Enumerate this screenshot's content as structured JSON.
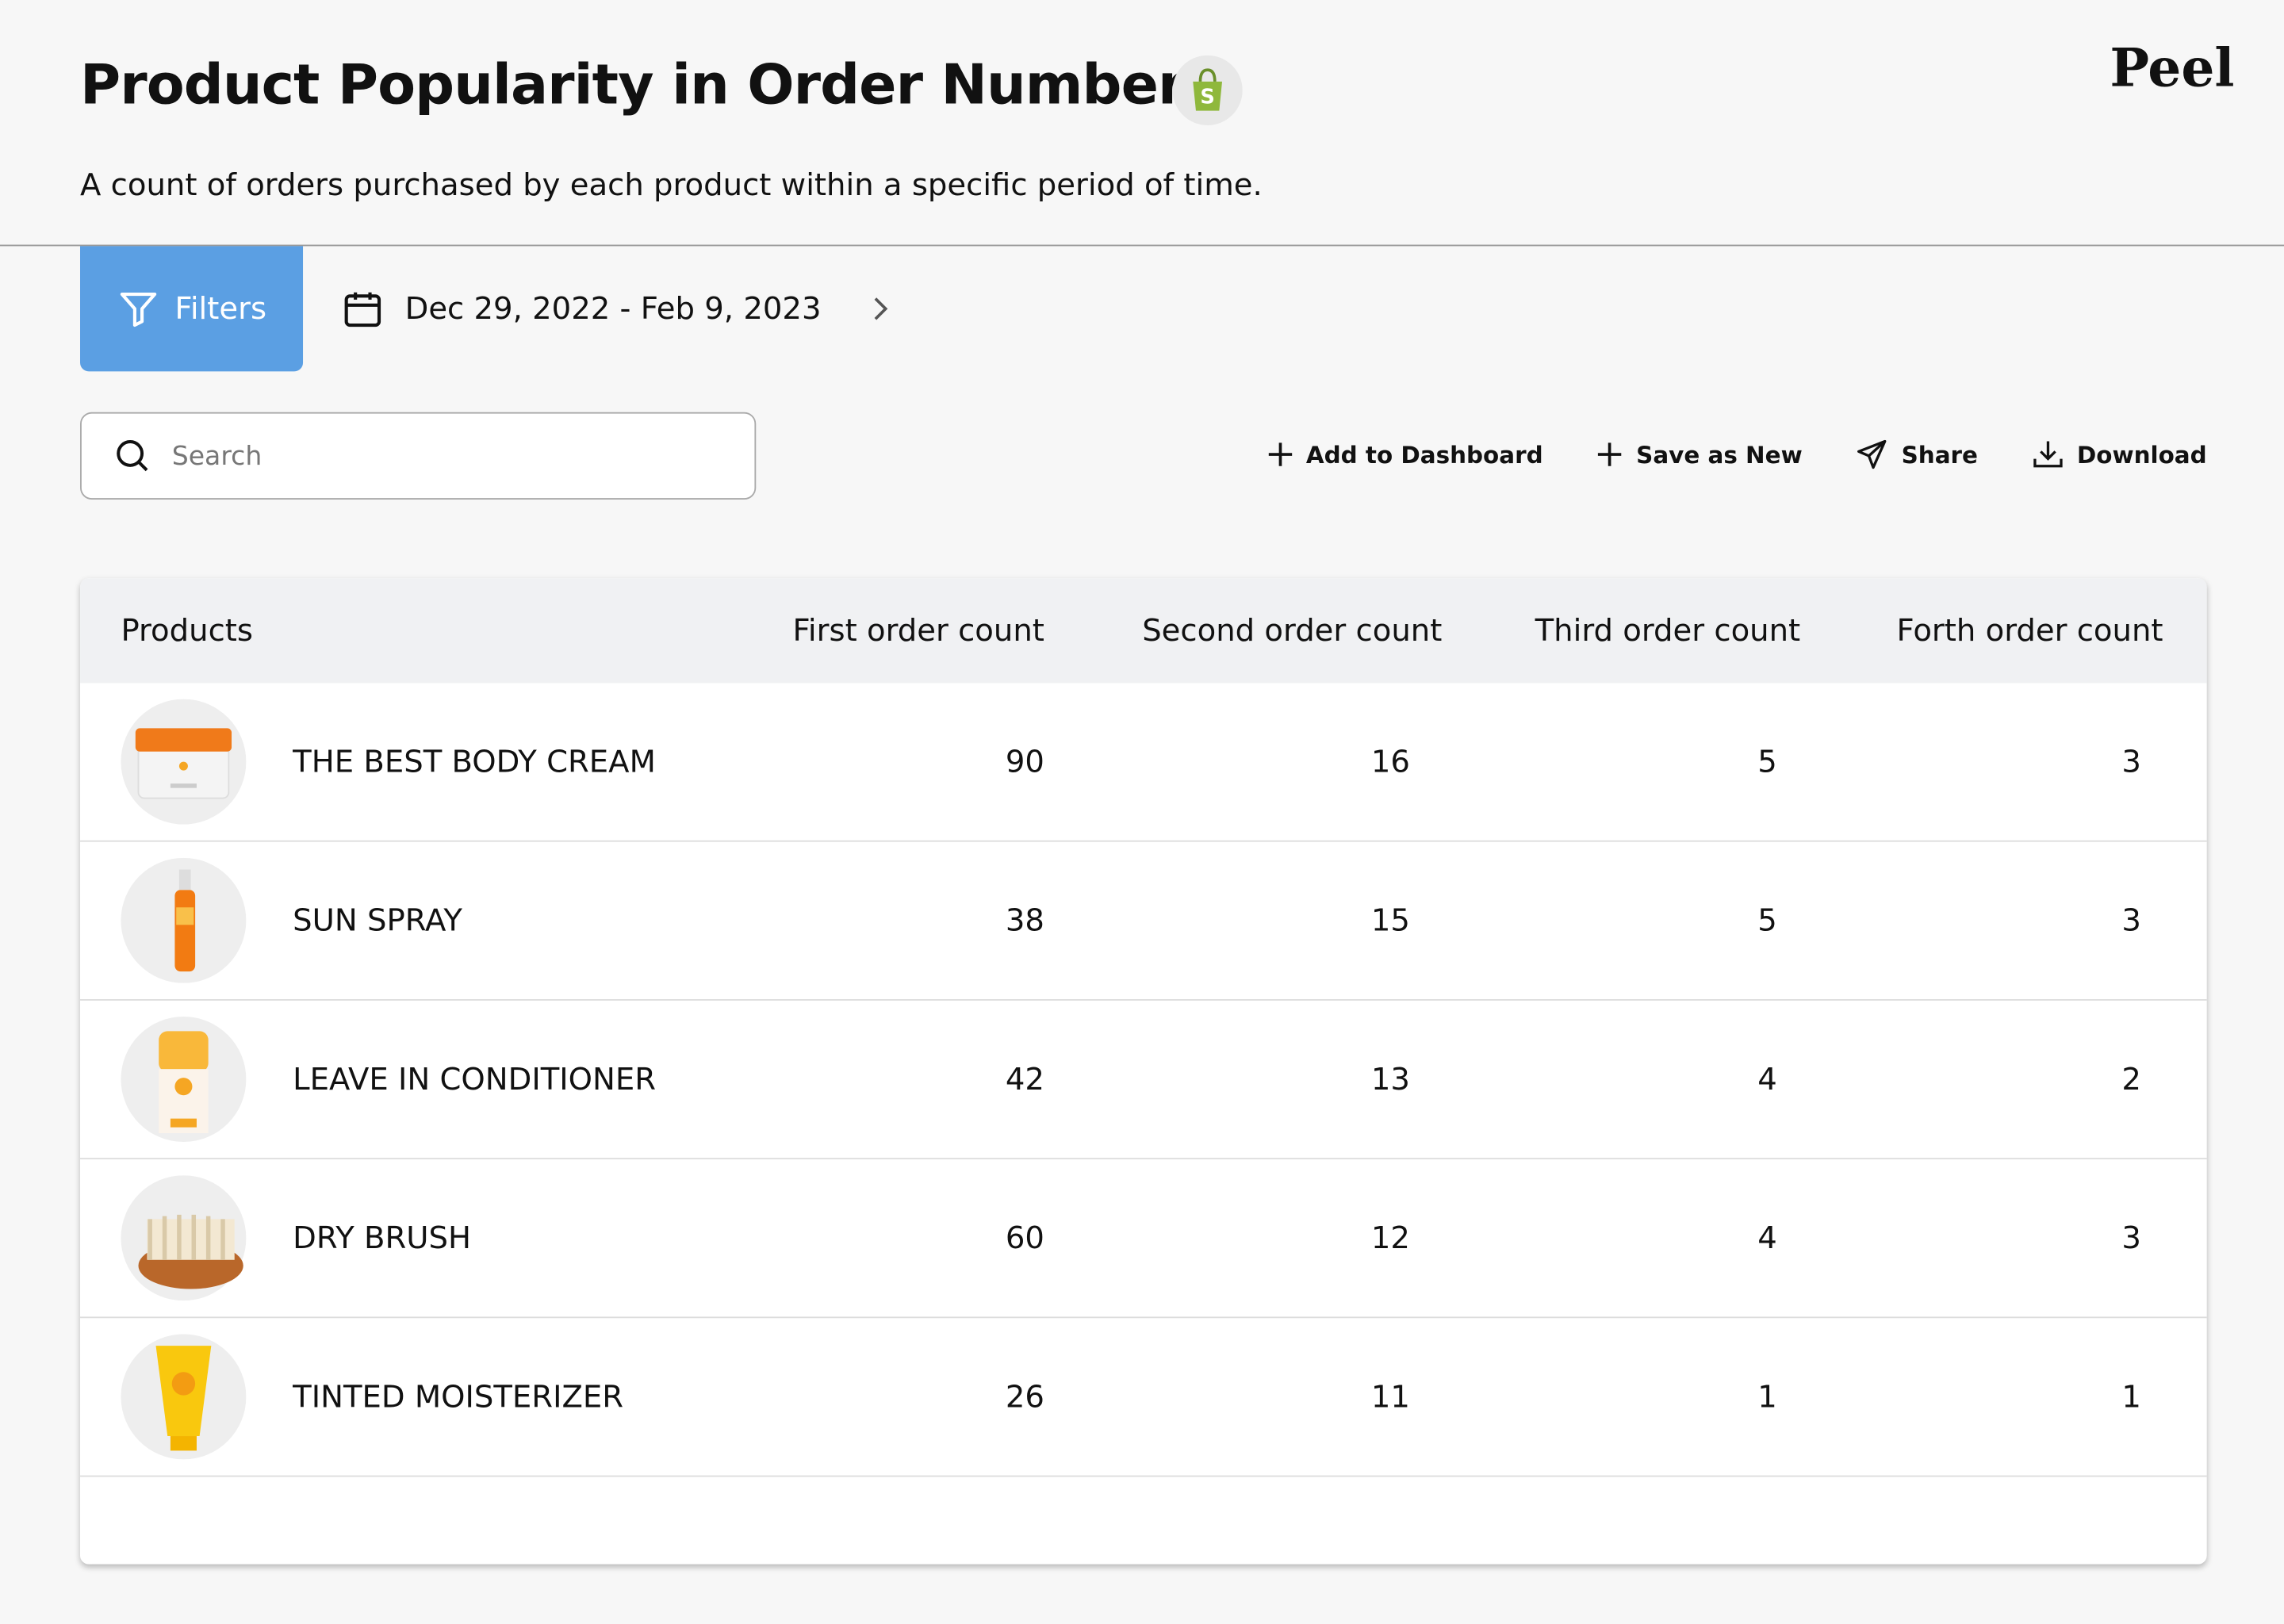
{
  "header": {
    "title": "Product Popularity in Order Number",
    "subtitle": "A count of orders purchased by each product within a specific period of time.",
    "brand": "Peel"
  },
  "toolbar": {
    "filters": "Filters",
    "date_range": "Dec 29, 2022 - Feb 9, 2023"
  },
  "search": {
    "placeholder": "Search"
  },
  "actions": [
    "Add to Dashboard",
    "Save as New",
    "Share",
    "Download"
  ],
  "table": {
    "columns": [
      "Products",
      "First order count",
      "Second order count",
      "Third order count",
      "Forth order count"
    ],
    "rows": [
      [
        "THE BEST BODY CREAM",
        90,
        16,
        5,
        3
      ],
      [
        "SUN SPRAY",
        38,
        15,
        5,
        3
      ],
      [
        "LEAVE IN CONDITIONER",
        42,
        13,
        4,
        2
      ],
      [
        "DRY BRUSH",
        60,
        12,
        4,
        3
      ],
      [
        "TINTED MOISTERIZER",
        26,
        11,
        1,
        1
      ]
    ]
  }
}
